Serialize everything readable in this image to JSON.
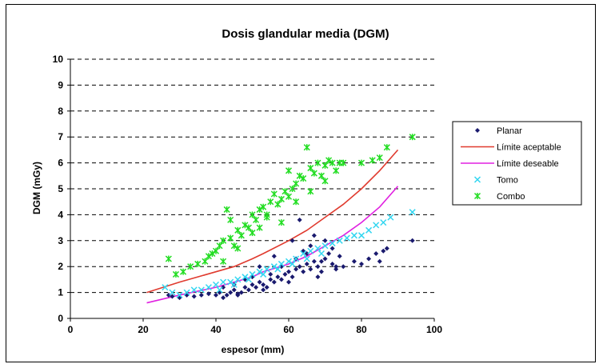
{
  "chart_data": {
    "type": "scatter",
    "title": "Dosis glandular media (DGM)",
    "xlabel": "espesor (mm)",
    "ylabel": "DGM (mGy)",
    "xlim": [
      0,
      100
    ],
    "ylim": [
      0,
      10
    ],
    "x_ticks": [
      "0",
      "20",
      "40",
      "60",
      "80",
      "100"
    ],
    "y_ticks": [
      "0",
      "1",
      "2",
      "3",
      "4",
      "5",
      "6",
      "7",
      "8",
      "9",
      "10"
    ],
    "grid": "horizontal dashed",
    "legend_position": "right",
    "series": [
      {
        "name": "Planar",
        "kind": "scatter",
        "marker": "diamond",
        "color": "#1a1a6e",
        "x": [
          27,
          28,
          30,
          32,
          34,
          36,
          38,
          40,
          41,
          42,
          43,
          44,
          45,
          46,
          47,
          48,
          49,
          50,
          51,
          52,
          53,
          54,
          55,
          56,
          57,
          58,
          59,
          60,
          61,
          62,
          63,
          64,
          65,
          66,
          67,
          68,
          69,
          70,
          71,
          72,
          73,
          74,
          75,
          78,
          80,
          82,
          84,
          86,
          87,
          94,
          42,
          45,
          48,
          50,
          53,
          55,
          58,
          60,
          62,
          64,
          66,
          68,
          70,
          72,
          46,
          52,
          56,
          61,
          65,
          69,
          63,
          67,
          73,
          85
        ],
        "y": [
          0.9,
          0.85,
          0.8,
          0.9,
          0.85,
          0.9,
          0.95,
          0.9,
          1.0,
          0.8,
          0.9,
          1.0,
          1.1,
          0.9,
          1.0,
          1.2,
          1.1,
          1.3,
          1.2,
          1.4,
          1.3,
          1.2,
          1.5,
          1.4,
          1.6,
          1.5,
          1.7,
          1.8,
          1.6,
          1.9,
          2.0,
          1.8,
          2.1,
          1.9,
          2.2,
          2.0,
          1.8,
          2.3,
          2.5,
          2.1,
          1.9,
          2.4,
          2.0,
          2.2,
          2.1,
          2.3,
          2.5,
          2.6,
          2.7,
          3.0,
          1.2,
          1.3,
          1.5,
          1.6,
          1.1,
          1.7,
          2.0,
          1.4,
          2.3,
          2.6,
          2.8,
          1.6,
          3.0,
          2.7,
          0.95,
          2.0,
          2.4,
          3.0,
          2.5,
          2.2,
          3.8,
          3.2,
          2.0,
          2.2
        ]
      },
      {
        "name": "Límite aceptable",
        "kind": "line",
        "color": "#e03a2e",
        "x": [
          21,
          30,
          40,
          45,
          50,
          53,
          60,
          65,
          70,
          75,
          80,
          85,
          90
        ],
        "y": [
          1.0,
          1.4,
          1.8,
          2.0,
          2.3,
          2.5,
          3.0,
          3.4,
          3.9,
          4.4,
          5.0,
          5.7,
          6.5
        ]
      },
      {
        "name": "Límite deseable",
        "kind": "line",
        "color": "#e020e0",
        "x": [
          21,
          30,
          40,
          45,
          50,
          53,
          60,
          65,
          70,
          75,
          80,
          85,
          90
        ],
        "y": [
          0.6,
          0.9,
          1.2,
          1.4,
          1.6,
          1.8,
          2.1,
          2.4,
          2.8,
          3.2,
          3.7,
          4.3,
          5.1
        ]
      },
      {
        "name": "Tomo",
        "kind": "scatter",
        "marker": "x",
        "color": "#33d6f0",
        "x": [
          26,
          28,
          30,
          32,
          34,
          36,
          38,
          40,
          42,
          44,
          46,
          48,
          50,
          52,
          54,
          56,
          58,
          60,
          62,
          64,
          66,
          68,
          70,
          72,
          74,
          76,
          78,
          80,
          82,
          84,
          86,
          88,
          94,
          41,
          45,
          49,
          53,
          57,
          61,
          65,
          69
        ],
        "y": [
          1.2,
          1.0,
          0.9,
          1.0,
          1.1,
          1.1,
          1.2,
          1.3,
          1.4,
          1.4,
          1.5,
          1.6,
          1.7,
          1.8,
          1.9,
          2.0,
          2.1,
          2.2,
          2.3,
          2.5,
          2.6,
          2.7,
          2.8,
          2.9,
          3.0,
          3.1,
          3.2,
          3.2,
          3.4,
          3.6,
          3.7,
          3.9,
          4.1,
          1.1,
          1.3,
          1.5,
          1.7,
          1.9,
          2.1,
          2.3,
          2.5
        ]
      },
      {
        "name": "Combo",
        "kind": "scatter",
        "marker": "star",
        "color": "#22dd22",
        "x": [
          27,
          29,
          31,
          33,
          35,
          37,
          38,
          39,
          40,
          41,
          42,
          43,
          44,
          45,
          46,
          47,
          48,
          49,
          50,
          51,
          52,
          53,
          54,
          55,
          56,
          57,
          58,
          59,
          60,
          61,
          62,
          63,
          64,
          65,
          66,
          67,
          68,
          69,
          70,
          71,
          72,
          73,
          74,
          75,
          80,
          83,
          85,
          87,
          94,
          42,
          46,
          50,
          54,
          58,
          62,
          66,
          70,
          44,
          52,
          60
        ],
        "y": [
          2.3,
          1.7,
          1.8,
          2.0,
          2.1,
          2.2,
          2.4,
          2.5,
          2.6,
          2.8,
          3.0,
          4.2,
          3.1,
          2.8,
          3.4,
          3.2,
          3.6,
          3.5,
          4.0,
          3.8,
          4.2,
          4.3,
          4.0,
          4.5,
          4.8,
          4.4,
          4.6,
          4.9,
          5.7,
          5.0,
          5.2,
          5.5,
          5.4,
          6.6,
          5.8,
          5.6,
          6.0,
          5.5,
          5.9,
          6.1,
          6.0,
          5.7,
          6.0,
          6.0,
          6.0,
          6.1,
          6.2,
          6.6,
          7.0,
          2.2,
          2.7,
          3.3,
          3.9,
          3.7,
          4.5,
          4.9,
          5.3,
          3.8,
          3.5,
          4.7
        ]
      }
    ]
  }
}
